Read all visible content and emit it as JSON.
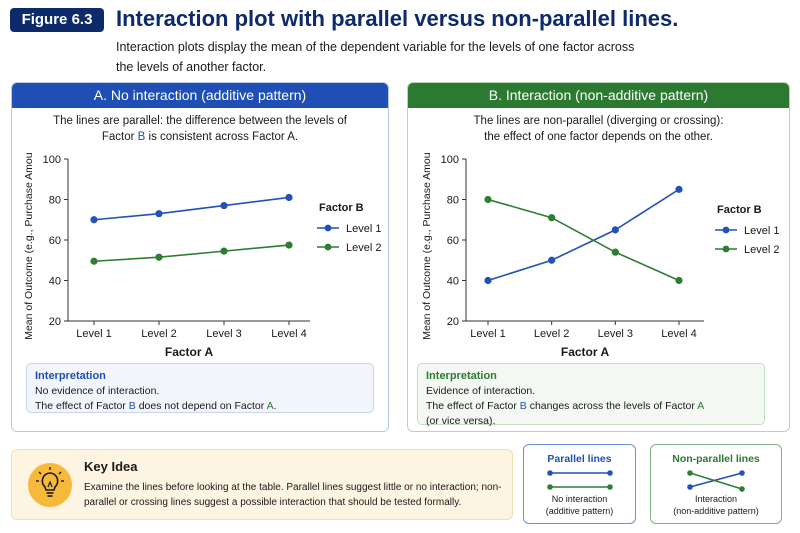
{
  "header": {
    "figure_label": "Figure 6.3",
    "title": "Interaction plot with parallel versus non-parallel lines.",
    "subtitle": "Interaction plots display the mean of the dependent variable for the levels of one factor across the levels of another factor."
  },
  "panel_a": {
    "heading": "A. No interaction (additive pattern)",
    "desc_pre": "The lines are parallel: the difference between the levels of Factor ",
    "desc_b": "B",
    "desc_post": " is consistent across Factor A.",
    "interp_title": "Interpretation",
    "interp_line1": "No evidence of interaction.",
    "interp_line2_pre": "The effect of Factor ",
    "interp_line2_b": "B",
    "interp_line2_mid": " does not depend on Factor ",
    "interp_line2_a": "A",
    "interp_line2_post": "."
  },
  "panel_b": {
    "heading": "B. Interaction (non-additive pattern)",
    "desc_line1": "The lines are non-parallel (diverging or crossing):",
    "desc_line2": "the effect of one factor depends on the other.",
    "interp_title": "Interpretation",
    "interp_line1": "Evidence of interaction.",
    "interp_line2_pre": "The effect of Factor ",
    "interp_line2_b": "B",
    "interp_line2_mid": " changes across the levels of Factor ",
    "interp_line2_a": "A",
    "interp_line3": "(or vice versa)."
  },
  "chart_data": [
    {
      "type": "line",
      "panel": "A",
      "categories": [
        "Level 1",
        "Level 2",
        "Level 3",
        "Level 4"
      ],
      "series": [
        {
          "name": "Level 1",
          "values": [
            70,
            73,
            77,
            81
          ],
          "color": "#2251b8"
        },
        {
          "name": "Level 2",
          "values": [
            49.5,
            51.5,
            54.5,
            57.5
          ],
          "color": "#2e7d32"
        }
      ],
      "xlabel": "Factor A",
      "ylabel": "Mean of Outcome (e.g., Purchase Amount)",
      "ylim": [
        20,
        100
      ],
      "yticks": [
        20,
        40,
        60,
        80,
        100
      ],
      "legend_title": "Factor B",
      "legend_position": "right",
      "grid": false
    },
    {
      "type": "line",
      "panel": "B",
      "categories": [
        "Level 1",
        "Level 2",
        "Level 3",
        "Level 4"
      ],
      "series": [
        {
          "name": "Level 1",
          "values": [
            40,
            50,
            65,
            85
          ],
          "color": "#2251b8"
        },
        {
          "name": "Level 2",
          "values": [
            80,
            71,
            54,
            40
          ],
          "color": "#2e7d32"
        }
      ],
      "xlabel": "Factor A",
      "ylabel": "Mean of Outcome (e.g., Purchase Amount)",
      "ylim": [
        20,
        100
      ],
      "yticks": [
        20,
        40,
        60,
        80,
        100
      ],
      "legend_title": "Factor B",
      "legend_position": "right",
      "grid": false
    }
  ],
  "key_idea": {
    "title": "Key Idea",
    "text": "Examine the lines before looking at the table. Parallel lines suggest little or no interaction; non-parallel or crossing lines suggest a possible interaction that should be tested formally.",
    "icon": "lightbulb-icon"
  },
  "mini_parallel": {
    "title": "Parallel lines",
    "caption_line1": "No interaction",
    "caption_line2": "(additive pattern)"
  },
  "mini_nonparallel": {
    "title": "Non-parallel lines",
    "caption_line1": "Interaction",
    "caption_line2": "(non-additive pattern)"
  },
  "colors": {
    "navy": "#0d2a6b",
    "blue": "#2251b8",
    "green": "#2e7d32",
    "amber": "#f6b93b"
  }
}
